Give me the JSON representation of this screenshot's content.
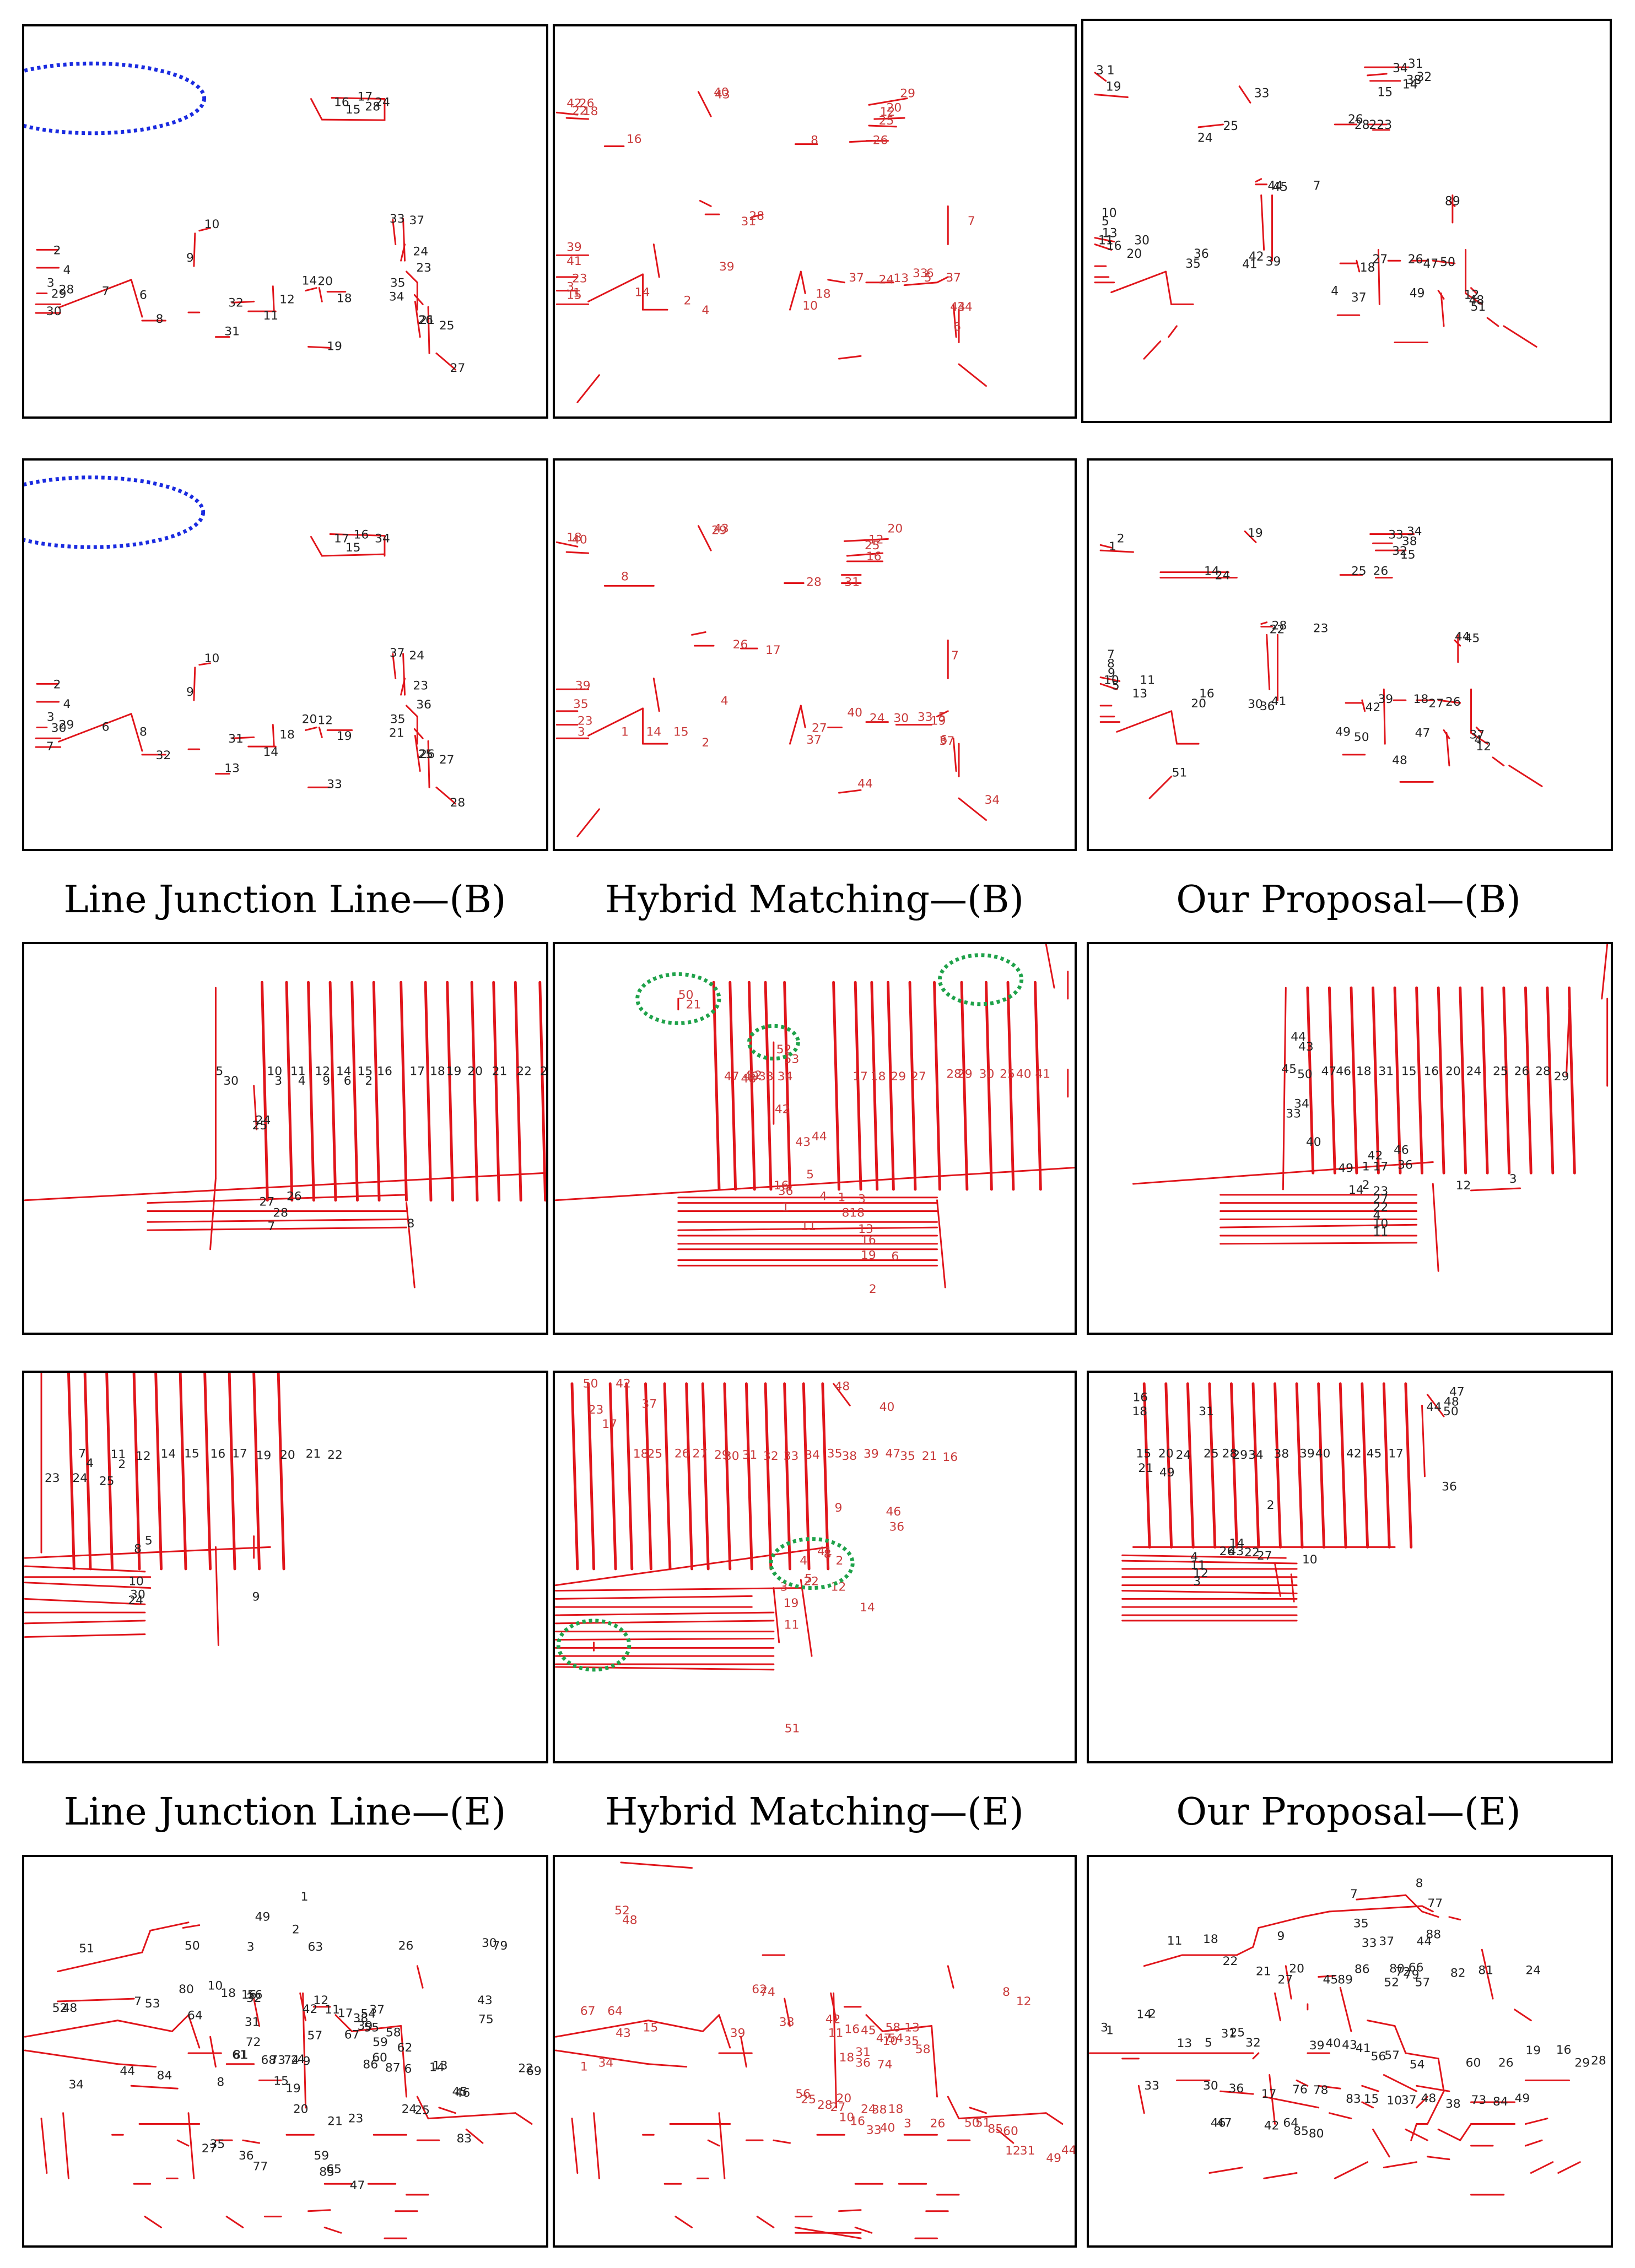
{
  "captions": {
    "row2": [
      "Line Junction Line—(B)",
      "Hybrid Matching—(B)",
      "Our Proposal—(B)"
    ],
    "row4": [
      "Line Junction Line—(E)",
      "Hybrid Matching—(E)",
      "Our Proposal—(E)"
    ]
  },
  "colors": {
    "line": "#e0151b",
    "label_dark": "#222222",
    "label_red": "#c93a3a",
    "blue_marker": "#1a2be0",
    "green_marker": "#1fa24a",
    "border": "#000000"
  },
  "panels": [
    {
      "id": "r1-ljl",
      "labels": [
        "17",
        "16",
        "15",
        "24",
        "10",
        "2",
        "9",
        "4",
        "3",
        "28",
        "29",
        "30",
        "7",
        "6",
        "8",
        "32",
        "31",
        "11",
        "14",
        "20",
        "12",
        "18",
        "19",
        "33",
        "37",
        "24",
        "23",
        "35",
        "34",
        "21",
        "26",
        "25",
        "27",
        "28"
      ]
    },
    {
      "id": "r1-hm",
      "labels": [
        "42",
        "26",
        "22",
        "18",
        "40",
        "43",
        "29",
        "20",
        "12",
        "25",
        "16",
        "8",
        "26",
        "28",
        "31",
        "17",
        "7",
        "39",
        "41",
        "23",
        "3",
        "1",
        "15",
        "14",
        "2",
        "4",
        "39",
        "10",
        "18",
        "37",
        "24",
        "13",
        "33",
        "5",
        "6",
        "37",
        "44",
        "34",
        "6"
      ]
    },
    {
      "id": "r1-op",
      "labels": [
        "3",
        "1",
        "19",
        "33",
        "34",
        "31",
        "38",
        "32",
        "15",
        "14",
        "24",
        "25",
        "26",
        "28",
        "22",
        "23",
        "44",
        "45",
        "7",
        "8",
        "9",
        "10",
        "5",
        "13",
        "11",
        "16",
        "20",
        "30",
        "36",
        "35",
        "41",
        "42",
        "39",
        "18",
        "27",
        "26",
        "47",
        "50",
        "49",
        "37",
        "4",
        "12",
        "48",
        "51"
      ]
    },
    {
      "id": "r2-ljl",
      "labels": [
        "16",
        "17",
        "15",
        "34",
        "10",
        "2",
        "9",
        "4",
        "3",
        "29",
        "30",
        "7",
        "6",
        "8",
        "32",
        "31",
        "13",
        "14",
        "20",
        "12",
        "18",
        "19",
        "33",
        "37",
        "24",
        "23",
        "36",
        "35",
        "21",
        "26",
        "25",
        "27",
        "28"
      ]
    },
    {
      "id": "r2-hm",
      "labels": [
        "18",
        "40",
        "43",
        "29",
        "20",
        "12",
        "25",
        "16",
        "8",
        "28",
        "31",
        "26",
        "17",
        "7",
        "39",
        "35",
        "23",
        "3",
        "1",
        "15",
        "14",
        "2",
        "4",
        "37",
        "27",
        "40",
        "24",
        "30",
        "33",
        "19",
        "5",
        "6",
        "37",
        "44",
        "34"
      ]
    },
    {
      "id": "r2-op",
      "labels": [
        "2",
        "1",
        "19",
        "33",
        "34",
        "38",
        "32",
        "15",
        "14",
        "24",
        "25",
        "26",
        "28",
        "22",
        "23",
        "44",
        "45",
        "7",
        "8",
        "9",
        "10",
        "5",
        "13",
        "11",
        "16",
        "20",
        "30",
        "36",
        "41",
        "42",
        "39",
        "18",
        "27",
        "26",
        "47",
        "50",
        "49",
        "37",
        "4",
        "12",
        "48",
        "51"
      ]
    },
    {
      "id": "r3-ljl",
      "labels": [
        "5",
        "10",
        "11",
        "12",
        "14",
        "15",
        "16",
        "17",
        "18",
        "19",
        "20",
        "21",
        "22",
        "23",
        "24",
        "25",
        "26",
        "27",
        "28",
        "7",
        "8",
        "30",
        "3",
        "4",
        "9",
        "6",
        "2"
      ]
    },
    {
      "id": "r3-hm",
      "labels": [
        "50",
        "52",
        "49",
        "47",
        "48",
        "32",
        "33",
        "34",
        "17",
        "18",
        "29",
        "27",
        "28",
        "29",
        "30",
        "25",
        "40",
        "41",
        "42",
        "43",
        "44",
        "5",
        "16",
        "36",
        "4",
        "1",
        "3",
        "8",
        "18",
        "13",
        "16",
        "19",
        "6",
        "11",
        "1",
        "2",
        "21",
        "53"
      ]
    },
    {
      "id": "r3-op",
      "labels": [
        "44",
        "45",
        "50",
        "47",
        "46",
        "18",
        "31",
        "15",
        "16",
        "20",
        "24",
        "25",
        "26",
        "28",
        "29",
        "33",
        "34",
        "40",
        "42",
        "46",
        "49",
        "17",
        "36",
        "1",
        "2",
        "14",
        "23",
        "27",
        "22",
        "4",
        "10",
        "11",
        "12",
        "3",
        "43"
      ]
    },
    {
      "id": "r4-ljl",
      "labels": [
        "7",
        "11",
        "12",
        "14",
        "15",
        "16",
        "17",
        "19",
        "20",
        "21",
        "22",
        "23",
        "24",
        "25",
        "5",
        "8",
        "10",
        "30",
        "24",
        "9",
        "4",
        "2"
      ]
    },
    {
      "id": "r4-hm",
      "labels": [
        "50",
        "42",
        "37",
        "48",
        "40",
        "23",
        "17",
        "18",
        "25",
        "26",
        "27",
        "29",
        "30",
        "31",
        "32",
        "33",
        "34",
        "35",
        "38",
        "39",
        "47",
        "35",
        "21",
        "16",
        "46",
        "36",
        "9",
        "41",
        "8",
        "4",
        "2",
        "5",
        "22",
        "3",
        "12",
        "19",
        "11",
        "14",
        "51"
      ]
    },
    {
      "id": "r4-op",
      "labels": [
        "47",
        "48",
        "16",
        "18",
        "31",
        "44",
        "50",
        "15",
        "20",
        "24",
        "25",
        "28",
        "29",
        "34",
        "38",
        "39",
        "40",
        "42",
        "45",
        "17",
        "21",
        "49",
        "36",
        "2",
        "14",
        "26",
        "22",
        "27",
        "43",
        "4",
        "10",
        "11",
        "12",
        "3"
      ]
    },
    {
      "id": "r5-ljl",
      "labels": [
        "1",
        "49",
        "2",
        "51",
        "50",
        "3",
        "63",
        "26",
        "30",
        "79",
        "80",
        "10",
        "18",
        "16",
        "56",
        "32",
        "81",
        "12",
        "11",
        "17",
        "54",
        "37",
        "38",
        "39",
        "43",
        "75",
        "52",
        "48",
        "53",
        "7",
        "64",
        "31",
        "72",
        "42",
        "57",
        "67",
        "55",
        "58",
        "59",
        "62",
        "60",
        "61",
        "68",
        "73",
        "74",
        "2",
        "4",
        "9",
        "86",
        "87",
        "6",
        "14",
        "13",
        "22",
        "69",
        "34",
        "44",
        "84",
        "8",
        "15",
        "19",
        "20",
        "21",
        "23",
        "24",
        "25",
        "45",
        "46",
        "83",
        "27",
        "35",
        "36",
        "77",
        "59",
        "65",
        "47",
        "85"
      ]
    },
    {
      "id": "r5-hm",
      "labels": [
        "52",
        "62",
        "74",
        "8",
        "12",
        "67",
        "64",
        "1",
        "34",
        "15",
        "43",
        "39",
        "38",
        "42",
        "45",
        "58",
        "13",
        "16",
        "11",
        "47",
        "10",
        "54",
        "35",
        "58",
        "31",
        "18",
        "36",
        "74",
        "56",
        "25",
        "28",
        "20",
        "27",
        "24",
        "38",
        "18",
        "10",
        "16",
        "33",
        "40",
        "3",
        "26",
        "50",
        "51",
        "85",
        "60",
        "12",
        "31",
        "49",
        "44",
        "73",
        "55",
        "63",
        "61",
        "29",
        "72",
        "48"
      ]
    },
    {
      "id": "r5-op",
      "labels": [
        "7",
        "8",
        "77",
        "11",
        "18",
        "9",
        "35",
        "33",
        "37",
        "88",
        "44",
        "22",
        "20",
        "21",
        "27",
        "45",
        "89",
        "86",
        "80",
        "66",
        "72",
        "79",
        "52",
        "57",
        "82",
        "81",
        "24",
        "14",
        "2",
        "3",
        "1",
        "13",
        "5",
        "31",
        "25",
        "32",
        "39",
        "40",
        "43",
        "41",
        "56",
        "57",
        "54",
        "60",
        "26",
        "19",
        "16",
        "29",
        "28",
        "33",
        "30",
        "36",
        "17",
        "76",
        "78",
        "83",
        "15",
        "10",
        "37",
        "48",
        "38",
        "73",
        "84",
        "49",
        "46",
        "47",
        "42",
        "64",
        "85",
        "80"
      ]
    }
  ]
}
